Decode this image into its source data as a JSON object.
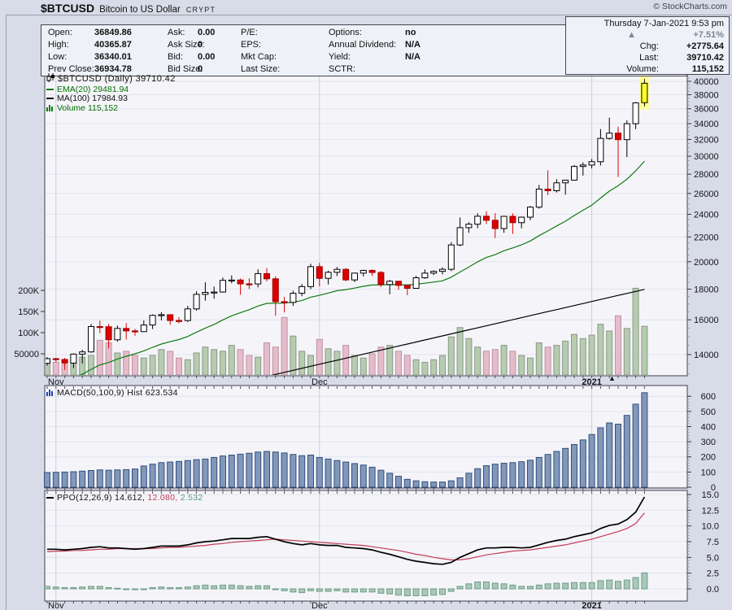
{
  "header": {
    "symbol": "$BTCUSD",
    "name": "Bitcoin to US Dollar",
    "exchange": "CRYPT",
    "credit": "© StockCharts.com"
  },
  "info_box": {
    "date": "Thursday 7-Jan-2021 9:53 pm",
    "direction_icon": "up-triangle",
    "pct_change": "+7.51%",
    "chg_label": "Chg:",
    "chg_value": "+2775.64",
    "last_label": "Last:",
    "last_value": "39710.42",
    "volume_label": "Volume:",
    "volume_value": "115,152"
  },
  "quote_panel": {
    "col1": [
      {
        "label": "Open:",
        "value": "36849.86"
      },
      {
        "label": "High:",
        "value": "40365.87"
      },
      {
        "label": "Low:",
        "value": "36340.01"
      },
      {
        "label": "Prev Close:",
        "value": "36934.78"
      }
    ],
    "col2": [
      {
        "label": "Ask:",
        "value": "0.00"
      },
      {
        "label": "Ask Size:",
        "value": "0"
      },
      {
        "label": "Bid:",
        "value": "0.00"
      },
      {
        "label": "Bid Size:",
        "value": "0"
      }
    ],
    "col3": [
      {
        "label": "P/E:",
        "value": ""
      },
      {
        "label": "EPS:",
        "value": ""
      },
      {
        "label": "Mkt Cap:",
        "value": ""
      },
      {
        "label": "Last Size:",
        "value": ""
      }
    ],
    "col4": [
      {
        "label": "Options:",
        "value": "no"
      },
      {
        "label": "Annual Dividend:",
        "value": "N/A"
      },
      {
        "label": "Yield:",
        "value": "N/A"
      },
      {
        "label": "SCTR:",
        "value": ""
      }
    ]
  },
  "legends": {
    "main_title": "$BTCUSD (Daily) 39710.42",
    "ema": "EMA(20) 29481.94",
    "ma": "MA(100) 17984.93",
    "volume": "Volume 115,152",
    "macd": "MACD(50,100,9) Hist 623.534",
    "ppo_1": "PPO(12,26,9) 14.612,",
    "ppo_2": "12.080,",
    "ppo_3": "2.532"
  },
  "axis": {
    "price_ticks": [
      40000,
      38000,
      36000,
      34000,
      32000,
      30000,
      28000,
      26000,
      24000,
      22000,
      20000,
      18000,
      16000,
      14000
    ],
    "volume_ticks": [
      {
        "value": 200,
        "label": "200K"
      },
      {
        "value": 150,
        "label": "150K"
      },
      {
        "value": 100,
        "label": "100K"
      },
      {
        "value": 50,
        "label": "50000"
      }
    ],
    "macd_ticks": [
      600,
      500,
      400,
      300,
      200,
      100,
      0
    ],
    "ppo_ticks": [
      {
        "value": 15,
        "label": "15.0"
      },
      {
        "value": 12.5,
        "label": "12.5"
      },
      {
        "value": 10,
        "label": "10.0"
      },
      {
        "value": 7.5,
        "label": "7.5"
      },
      {
        "value": 5,
        "label": "5.0"
      },
      {
        "value": 2.5,
        "label": "2.5"
      },
      {
        "value": 0,
        "label": "0.0"
      }
    ],
    "months": [
      {
        "label": "Nov",
        "index": 1,
        "bold": false
      },
      {
        "label": "Dec",
        "index": 31,
        "bold": false
      },
      {
        "label": "2021",
        "index": 62,
        "bold": true
      }
    ]
  },
  "chart_data": {
    "type": "candlestick",
    "title": "$BTCUSD (Daily)",
    "scale": "log",
    "panels": [
      "price+volume+EMA20+MA100",
      "MACD(50,100,9) histogram",
      "PPO(12,26,9)"
    ],
    "date_range": "31-Oct-2020 to 7-Jan-2021",
    "ylim_price": [
      12900,
      41000
    ],
    "ylim_macd": [
      0,
      650
    ],
    "ylim_ppo": [
      -1.5,
      15.6
    ],
    "candles": [
      [
        13540,
        13860,
        13420,
        13780
      ],
      [
        13780,
        13830,
        13600,
        13737
      ],
      [
        13737,
        13820,
        13200,
        13550
      ],
      [
        13550,
        14060,
        13290,
        14023
      ],
      [
        14023,
        14260,
        13530,
        14144
      ],
      [
        14144,
        15750,
        14100,
        15590
      ],
      [
        15590,
        15950,
        15200,
        15579
      ],
      [
        15579,
        15750,
        14340,
        14818
      ],
      [
        14818,
        15650,
        14710,
        15479
      ],
      [
        15479,
        15800,
        14830,
        15332
      ],
      [
        15332,
        15460,
        15050,
        15290
      ],
      [
        15290,
        15960,
        15270,
        15684
      ],
      [
        15684,
        16340,
        15440,
        16276
      ],
      [
        16276,
        16480,
        15960,
        16317
      ],
      [
        16317,
        16330,
        15700,
        15957
      ],
      [
        15957,
        16160,
        15780,
        15955
      ],
      [
        15955,
        16880,
        15870,
        16685
      ],
      [
        16685,
        17860,
        16570,
        17645
      ],
      [
        17645,
        18480,
        17220,
        17777
      ],
      [
        17777,
        18180,
        17350,
        17802
      ],
      [
        17802,
        18820,
        17760,
        18621
      ],
      [
        18621,
        18970,
        18400,
        18642
      ],
      [
        18642,
        18750,
        17620,
        18370
      ],
      [
        18370,
        18770,
        18010,
        18364
      ],
      [
        18364,
        19420,
        18120,
        19107
      ],
      [
        19107,
        19510,
        18550,
        18729
      ],
      [
        18729,
        18910,
        16250,
        17153
      ],
      [
        17153,
        17460,
        16460,
        17108
      ],
      [
        17108,
        17890,
        16880,
        17719
      ],
      [
        17719,
        18360,
        17520,
        18178
      ],
      [
        18178,
        19850,
        18010,
        19625
      ],
      [
        19625,
        19910,
        18200,
        18764
      ],
      [
        18764,
        19320,
        18330,
        19204
      ],
      [
        19204,
        19600,
        18930,
        19421
      ],
      [
        19421,
        19530,
        18570,
        18650
      ],
      [
        18650,
        19180,
        18490,
        19144
      ],
      [
        19144,
        19400,
        18900,
        19345
      ],
      [
        19345,
        19420,
        18940,
        19191
      ],
      [
        19191,
        19300,
        18150,
        18321
      ],
      [
        18321,
        18650,
        17650,
        18553
      ],
      [
        18553,
        18560,
        17960,
        18264
      ],
      [
        18264,
        18300,
        17590,
        18058
      ],
      [
        18058,
        18950,
        18050,
        18803
      ],
      [
        18803,
        19420,
        18730,
        19144
      ],
      [
        19144,
        19350,
        19000,
        19273
      ],
      [
        19273,
        19570,
        19050,
        19426
      ],
      [
        19426,
        21560,
        19290,
        21335
      ],
      [
        21335,
        23700,
        21230,
        22797
      ],
      [
        22797,
        23280,
        22350,
        23107
      ],
      [
        23107,
        24100,
        22750,
        23821
      ],
      [
        23821,
        24290,
        23130,
        23455
      ],
      [
        23455,
        24100,
        21900,
        22719
      ],
      [
        22719,
        23830,
        22350,
        23810
      ],
      [
        23810,
        24090,
        22260,
        23240
      ],
      [
        23240,
        23790,
        22740,
        23735
      ],
      [
        23735,
        24780,
        23460,
        24665
      ],
      [
        24665,
        26870,
        24520,
        26437
      ],
      [
        26437,
        28420,
        25830,
        26272
      ],
      [
        26272,
        27470,
        26100,
        27084
      ],
      [
        27084,
        27400,
        25880,
        27362
      ],
      [
        27362,
        29000,
        27320,
        28840
      ],
      [
        28840,
        29300,
        27850,
        29001
      ],
      [
        29001,
        29680,
        28620,
        29374
      ],
      [
        29374,
        33300,
        28950,
        32127
      ],
      [
        32127,
        34780,
        31960,
        32782
      ],
      [
        32782,
        33600,
        27700,
        31971
      ],
      [
        31971,
        34440,
        29900,
        33992
      ],
      [
        33992,
        36940,
        33290,
        36824
      ],
      [
        36850,
        40366,
        36340,
        39710
      ]
    ],
    "volume_k": [
      28,
      30,
      25,
      36,
      42,
      46,
      82,
      76,
      52,
      56,
      46,
      40,
      46,
      60,
      56,
      40,
      36,
      52,
      66,
      60,
      56,
      70,
      60,
      46,
      42,
      76,
      66,
      136,
      92,
      56,
      46,
      84,
      62,
      56,
      70,
      46,
      40,
      50,
      66,
      70,
      56,
      46,
      36,
      30,
      36,
      46,
      90,
      112,
      86,
      66,
      56,
      60,
      70,
      56,
      46,
      40,
      76,
      66,
      70,
      80,
      96,
      86,
      94,
      120,
      104,
      140,
      110,
      205,
      115
    ],
    "macd_hist": [
      96,
      98,
      100,
      102,
      106,
      110,
      114,
      112,
      114,
      116,
      120,
      140,
      152,
      162,
      166,
      170,
      176,
      182,
      186,
      196,
      206,
      212,
      218,
      224,
      232,
      236,
      232,
      226,
      216,
      208,
      212,
      196,
      186,
      176,
      166,
      156,
      146,
      132,
      112,
      92,
      72,
      52,
      42,
      36,
      34,
      34,
      42,
      62,
      92,
      122,
      142,
      152,
      158,
      162,
      168,
      178,
      196,
      216,
      236,
      256,
      282,
      312,
      348,
      392,
      424,
      416,
      474,
      548,
      623.5
    ],
    "ppo": [
      6.3,
      6.3,
      6.2,
      6.3,
      6.4,
      6.6,
      6.7,
      6.5,
      6.5,
      6.4,
      6.3,
      6.4,
      6.6,
      6.8,
      6.8,
      6.8,
      7.0,
      7.3,
      7.5,
      7.6,
      7.8,
      8.0,
      8.0,
      8.0,
      8.2,
      8.3,
      7.9,
      7.5,
      7.2,
      7.0,
      7.2,
      7.0,
      6.9,
      6.9,
      6.6,
      6.5,
      6.4,
      6.2,
      5.8,
      5.5,
      5.1,
      4.7,
      4.4,
      4.2,
      4.0,
      3.9,
      4.2,
      5.0,
      5.6,
      6.2,
      6.5,
      6.5,
      6.6,
      6.6,
      6.5,
      6.6,
      7.0,
      7.4,
      7.7,
      7.9,
      8.3,
      8.6,
      8.9,
      9.6,
      10.1,
      10.3,
      11.0,
      12.2,
      14.612
    ],
    "ppo_signal": [
      5.9,
      6.0,
      6.0,
      6.1,
      6.1,
      6.2,
      6.3,
      6.3,
      6.4,
      6.4,
      6.4,
      6.4,
      6.4,
      6.5,
      6.6,
      6.6,
      6.7,
      6.8,
      6.9,
      7.1,
      7.2,
      7.4,
      7.5,
      7.6,
      7.7,
      7.8,
      7.9,
      7.8,
      7.7,
      7.6,
      7.5,
      7.4,
      7.3,
      7.2,
      7.1,
      7.0,
      6.9,
      6.7,
      6.5,
      6.3,
      6.1,
      5.8,
      5.5,
      5.3,
      5.0,
      4.8,
      4.6,
      4.6,
      4.8,
      5.1,
      5.4,
      5.6,
      5.8,
      6.0,
      6.1,
      6.2,
      6.4,
      6.6,
      6.8,
      7.0,
      7.3,
      7.6,
      7.9,
      8.3,
      8.7,
      9.1,
      9.6,
      10.4,
      12.08
    ],
    "ema20_last": 29481.94,
    "ma100_last": 17984.93,
    "ema20_hint_seed": 12400,
    "ma100_hint": {
      "start": 10600,
      "end": 17984.93
    },
    "highlight_last_candle": true,
    "colors": {
      "background": "#d8dce8",
      "panel": "#f5f5f9",
      "border": "#41414b",
      "grid": "#e2e4ef",
      "vgrid": "#c9cdd9",
      "candle_up": "#ffffff",
      "candle_down": "#dd0000",
      "candle_last": "#ffff2e",
      "last_highlight": "#ffff99",
      "volume_up": "#b7cbb0",
      "volume_up_border": "#8a9a84",
      "volume_down": "#e6bcca",
      "volume_down_border": "#bf93a3",
      "ema20": "#117a11",
      "ma100": "#000000",
      "macd_bar": "#8198ba",
      "macd_bar_border": "#31507e",
      "ppo_line": "#000000",
      "ppo_signal": "#c23b55",
      "ppo_hist": "#a9c8b8",
      "ppo_hist_border": "#6f9d88",
      "pct_change": "#7b8494"
    }
  }
}
